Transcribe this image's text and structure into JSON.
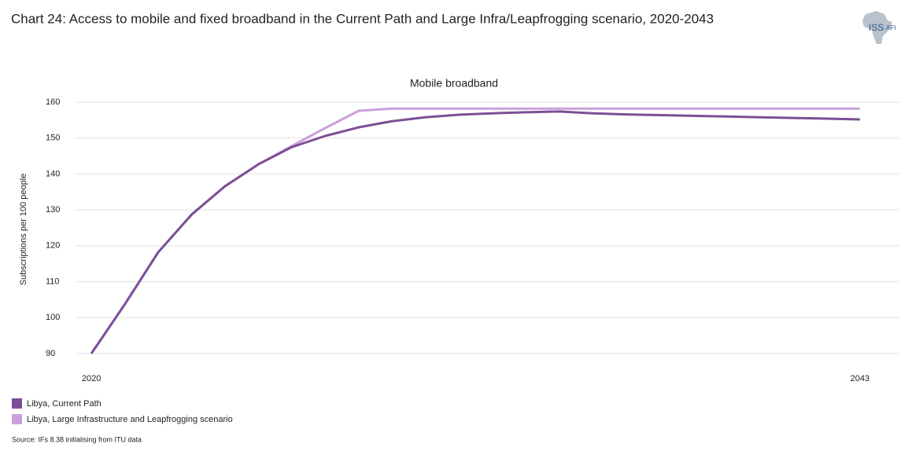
{
  "header": {
    "title": "Chart 24: Access to mobile and fixed broadband in the Current Path and Large Infra/Leapfrogging scenario, 2020-2043",
    "logo_left": "ISS",
    "logo_right": "AFI"
  },
  "chart_data": {
    "type": "line",
    "title": "Mobile broadband",
    "y_label": "Subscriptions per 100 people",
    "x": [
      2020,
      2021,
      2022,
      2023,
      2024,
      2025,
      2026,
      2027,
      2028,
      2029,
      2030,
      2031,
      2032,
      2033,
      2034,
      2035,
      2036,
      2037,
      2038,
      2039,
      2040,
      2041,
      2042,
      2043
    ],
    "series": [
      {
        "name": "Libya, Current Path",
        "color": "#7b4f96",
        "values": [
          90,
          103.7,
          118.2,
          128.7,
          136.6,
          142.7,
          147.5,
          150.6,
          153,
          154.7,
          155.8,
          156.5,
          156.9,
          157.2,
          157.4,
          156.9,
          156.6,
          156.4,
          156.2,
          156,
          155.8,
          155.6,
          155.4,
          155.2
        ]
      },
      {
        "name": "Libya, Large Infrastructure and Leapfrogging scenario",
        "color": "#c9a0dc",
        "values": [
          90,
          103.7,
          118.2,
          128.7,
          136.6,
          142.7,
          147.8,
          152.8,
          157.6,
          158.2,
          158.2,
          158.2,
          158.2,
          158.2,
          158.2,
          158.2,
          158.2,
          158.2,
          158.2,
          158.2,
          158.2,
          158.2,
          158.2,
          158.2
        ]
      }
    ],
    "xlim": [
      2019.55,
      2044.18
    ],
    "xticks": [
      2020,
      2043
    ],
    "ylim": [
      87.8,
      161.1
    ],
    "yticks": [
      90,
      100,
      110,
      120,
      130,
      140,
      150,
      160
    ],
    "grid": true
  },
  "source": "Source: IFs 8.38 initialising from ITU data"
}
